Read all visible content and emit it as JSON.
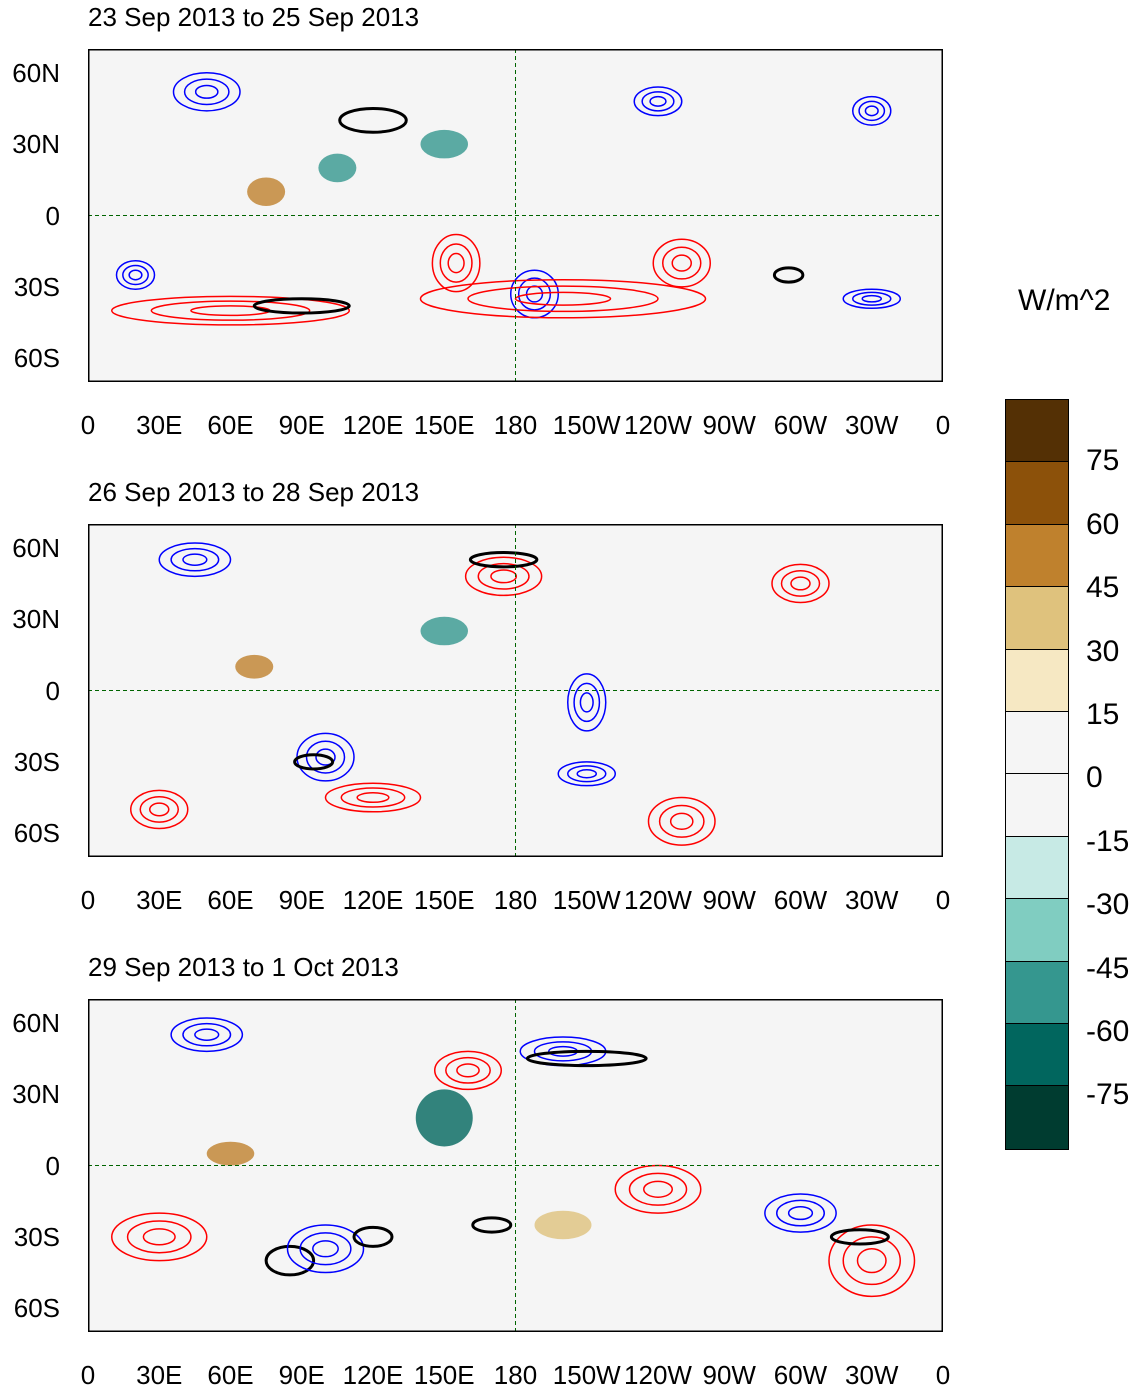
{
  "panels": [
    {
      "title": "23 Sep 2013 to 25 Sep 2013"
    },
    {
      "title": "26 Sep 2013 to 28 Sep 2013"
    },
    {
      "title": "29 Sep 2013 to 1 Oct 2013"
    }
  ],
  "lat_labels": [
    "60N",
    "30N",
    "0",
    "30S",
    "60S"
  ],
  "lon_labels": [
    "0",
    "30E",
    "60E",
    "90E",
    "120E",
    "150E",
    "180",
    "150W",
    "120W",
    "90W",
    "60W",
    "30W",
    "0"
  ],
  "colorbar": {
    "units": "W/m^2",
    "labels": [
      "75",
      "60",
      "45",
      "30",
      "15",
      "0",
      "-15",
      "-30",
      "-45",
      "-60",
      "-75"
    ],
    "colors": [
      "#543005",
      "#8c510a",
      "#bf812d",
      "#dfc27d",
      "#f6e8c3",
      "#f5f5f5",
      "#f5f5f5",
      "#c7eae5",
      "#80cdc1",
      "#35978f",
      "#01665e",
      "#003c30"
    ]
  },
  "contour_colors": {
    "positive": "#ff0000",
    "negative": "#0000ff",
    "significant": "#000000",
    "coast": "#006400"
  }
}
